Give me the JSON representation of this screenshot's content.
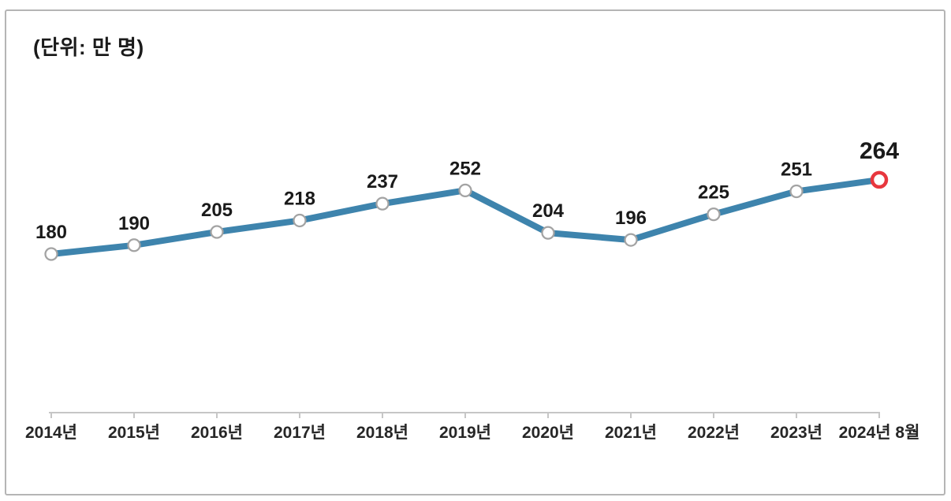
{
  "unit_label": "(단위: 만 명)",
  "chart_data": {
    "type": "line",
    "title": "",
    "unit_label": "(단위: 만 명)",
    "categories": [
      "2014년",
      "2015년",
      "2016년",
      "2017년",
      "2018년",
      "2019년",
      "2020년",
      "2021년",
      "2022년",
      "2023년",
      "2024년 8월"
    ],
    "values": [
      180,
      190,
      205,
      218,
      237,
      252,
      204,
      196,
      225,
      251,
      264
    ],
    "data_labels": true,
    "legend": "none",
    "y_axis": "hidden",
    "x_axis": "visible",
    "grid": false,
    "line_color": "#3e84ad",
    "marker_fill": "#ffffff",
    "marker_stroke": "#a3a3a3",
    "axis_color": "#c6c6c6",
    "frame_border_color": "#b5b5b5",
    "label_color": "#1a1a1a",
    "last_point_highlight": {
      "marker_stroke": "#e8373e",
      "label_emphasis": true
    }
  }
}
